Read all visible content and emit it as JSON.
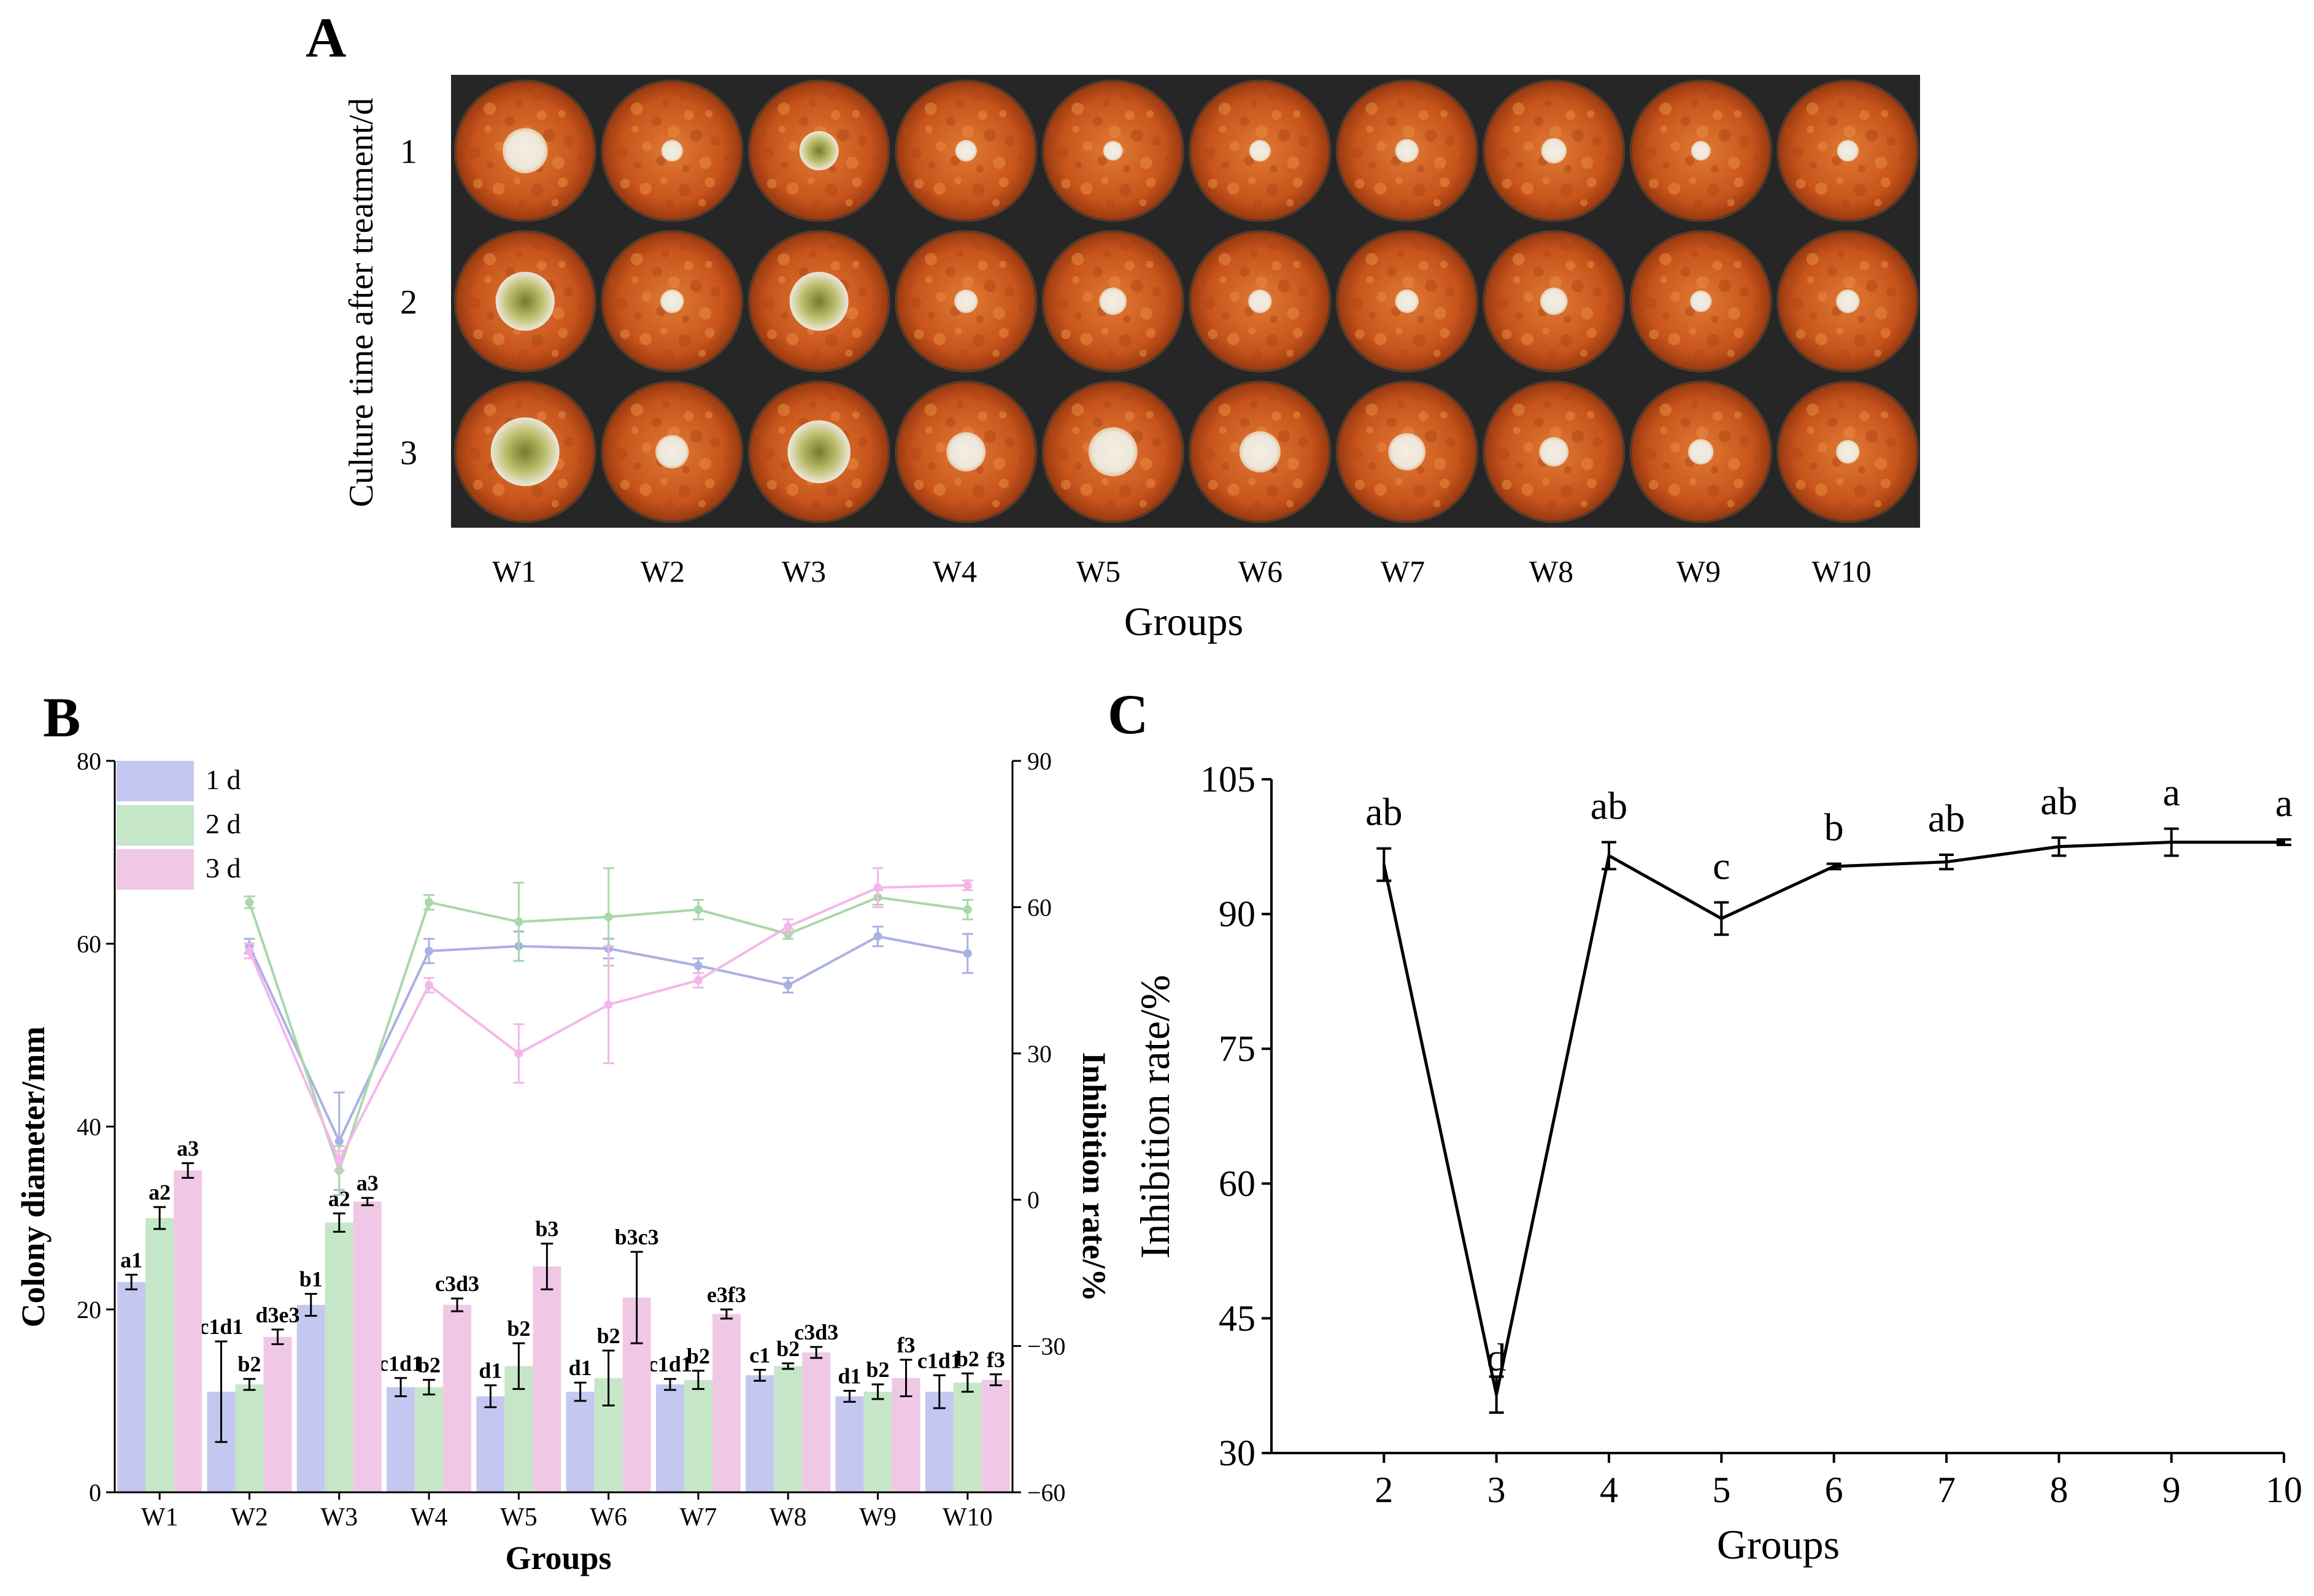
{
  "panel_a": {
    "letter": "A",
    "ylabel": "Culture time after treatment/d",
    "xlabel": "Groups",
    "groups": [
      "W1",
      "W2",
      "W3",
      "W4",
      "W5",
      "W6",
      "W7",
      "W8",
      "W9",
      "W10"
    ],
    "days": [
      "1",
      "2",
      "3"
    ],
    "colony_sizes_mm": [
      [
        23,
        11,
        20,
        11,
        10,
        11,
        12,
        13,
        10,
        11
      ],
      [
        30,
        12,
        30,
        12,
        14,
        12,
        12,
        14,
        11,
        12
      ],
      [
        35,
        17,
        32,
        20,
        25,
        21,
        19,
        15,
        13,
        12
      ]
    ],
    "colors": {
      "background": "#2a2a2a",
      "medium": "#c8541c",
      "medium_dark": "#9a3a10",
      "medium_light": "#e07a34",
      "colony_white": "#eeeee4",
      "colony_green": "#b8bf6a",
      "colony_dark": "#6e7a2c"
    }
  },
  "panel_b_letter": "B",
  "panel_c_letter": "C",
  "chart_data": [
    {
      "id": "B",
      "type": "bar",
      "title": "",
      "xlabel": "Groups",
      "ylabel": "Colony diameter/mm",
      "y2label": "Inhibition rate/%",
      "ylim": [
        0,
        80
      ],
      "y2lim": [
        -60,
        90
      ],
      "yticks": [
        0,
        20,
        40,
        60,
        80
      ],
      "y2ticks": [
        -60,
        -30,
        0,
        30,
        60,
        90
      ],
      "categories": [
        "W1",
        "W2",
        "W3",
        "W4",
        "W5",
        "W6",
        "W7",
        "W8",
        "W9",
        "W10"
      ],
      "legend": {
        "position": "top-left",
        "entries": [
          "1 d",
          "2 d",
          "3 d"
        ]
      },
      "series": [
        {
          "name": "1 d",
          "color": "#c4c8f0",
          "line_color": "#a9b0e2",
          "values": [
            23,
            11,
            20.5,
            11.5,
            10.5,
            11,
            11.8,
            12.8,
            10.5,
            11
          ],
          "errors": [
            0.8,
            5.5,
            1.2,
            1.0,
            1.2,
            1.0,
            0.6,
            0.6,
            0.6,
            1.8
          ],
          "labels": [
            "a1",
            "c1d1",
            "b1",
            "c1d1",
            "d1",
            "d1",
            "c1d1",
            "c1",
            "d1",
            "c1d1"
          ],
          "inhibition": [
            null,
            52,
            12,
            51,
            52,
            51.5,
            48,
            44,
            54,
            50.5
          ],
          "inhibition_err": [
            null,
            1.5,
            10,
            2.5,
            3,
            2,
            1.5,
            1.5,
            2,
            4
          ]
        },
        {
          "name": "2 d",
          "color": "#c6e6c8",
          "line_color": "#a8d8aa",
          "values": [
            30,
            11.8,
            29.5,
            11.5,
            13.8,
            12.5,
            12.3,
            13.8,
            11,
            12
          ],
          "errors": [
            1.2,
            0.6,
            1.0,
            0.8,
            2.5,
            3.0,
            1.0,
            0.3,
            0.8,
            1.0
          ],
          "labels": [
            "a2",
            "b2",
            "a2",
            "b2",
            "b2",
            "b2",
            "b2",
            "b2",
            "b2",
            "b2"
          ],
          "inhibition": [
            null,
            61,
            6,
            61,
            57,
            58,
            59.5,
            54.5,
            62,
            59.5
          ],
          "inhibition_err": [
            null,
            1.2,
            5,
            1.5,
            8,
            10,
            2,
            1,
            1.5,
            2
          ]
        },
        {
          "name": "3 d",
          "color": "#f0c8e6",
          "line_color": "#f4b6ea",
          "values": [
            35.2,
            17,
            31.8,
            20.5,
            24.7,
            21.3,
            19.5,
            15.3,
            12.5,
            12.3
          ],
          "errors": [
            0.8,
            0.8,
            0.4,
            0.7,
            2.5,
            5.0,
            0.5,
            0.6,
            2.0,
            0.6
          ],
          "labels": [
            "a3",
            "d3e3",
            "a3",
            "c3d3",
            "b3",
            "b3c3",
            "e3f3",
            "c3d3",
            "f3",
            "f3"
          ],
          "inhibition": [
            null,
            51,
            8,
            44,
            30,
            40,
            45,
            56,
            64,
            64.5
          ],
          "inhibition_err": [
            null,
            1.5,
            2,
            1.5,
            6,
            12,
            1.5,
            1.5,
            4,
            1
          ]
        }
      ],
      "extra_label": "c1d1"
    },
    {
      "id": "C",
      "type": "line",
      "title": "",
      "xlabel": "Groups",
      "ylabel": "Inhibition rate/%",
      "xlim": [
        1,
        10
      ],
      "ylim": [
        30,
        105
      ],
      "xticks": [
        2,
        3,
        4,
        5,
        6,
        7,
        8,
        9,
        10
      ],
      "yticks": [
        30,
        45,
        60,
        75,
        90,
        105
      ],
      "x": [
        2,
        3,
        4,
        5,
        6,
        7,
        8,
        9,
        10
      ],
      "y": [
        95.5,
        36.5,
        96.5,
        89.5,
        95.3,
        95.8,
        97.5,
        98,
        98
      ],
      "errors": [
        1.8,
        2.0,
        1.5,
        1.8,
        0.3,
        0.8,
        1.0,
        1.5,
        0.3
      ],
      "labels": [
        "ab",
        "d",
        "ab",
        "c",
        "b",
        "ab",
        "ab",
        "a",
        "a"
      ]
    }
  ]
}
